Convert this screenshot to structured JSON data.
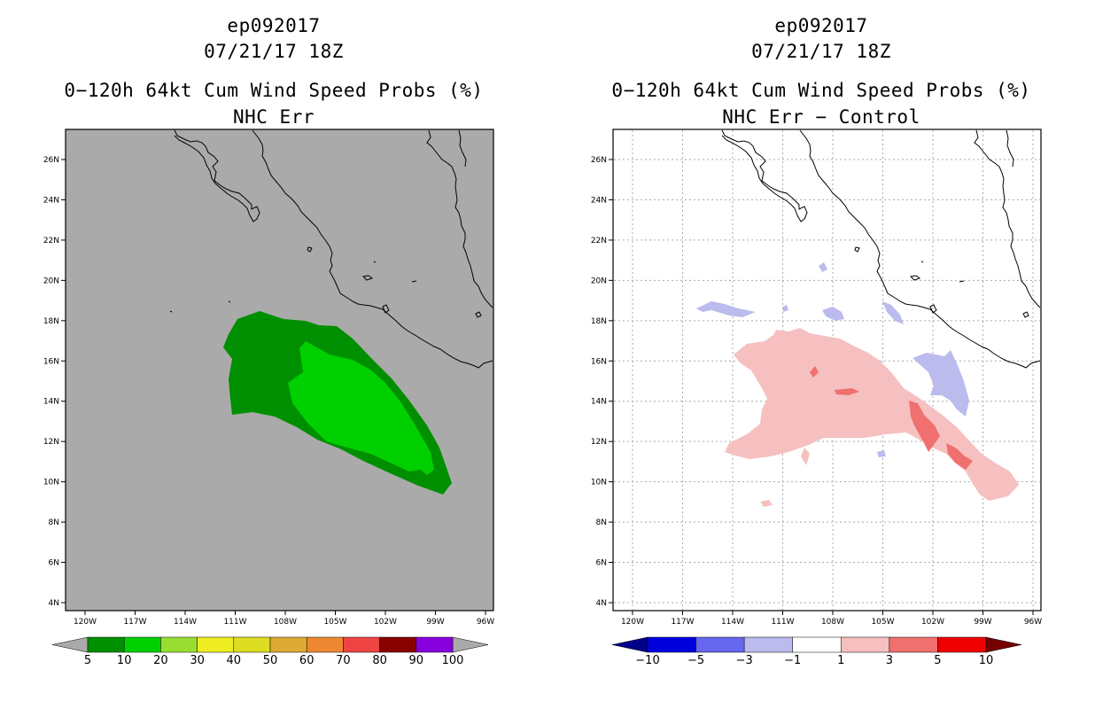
{
  "left": {
    "title_storm": "ep092017",
    "title_time": "07/21/17 18Z",
    "title_product": "0−120h 64kt Cum Wind Speed Probs (%)",
    "title_sub": "NHC Err",
    "colorbar": {
      "labels": [
        "5",
        "10",
        "20",
        "30",
        "40",
        "50",
        "60",
        "70",
        "80",
        "90",
        "100"
      ],
      "colors": [
        "#008f00",
        "#00d000",
        "#99dd33",
        "#eeee22",
        "#dddd22",
        "#ddaa33",
        "#ee8833",
        "#ee4444",
        "#880000",
        "#8800dd"
      ],
      "under_color": "#aaaaaa",
      "over_color": "#aaaaaa"
    },
    "background_color": "#aaaaaa"
  },
  "right": {
    "title_storm": "ep092017",
    "title_time": "07/21/17 18Z",
    "title_product": "0−120h 64kt Cum Wind Speed Probs (%)",
    "title_sub": "NHC Err − Control",
    "colorbar": {
      "labels": [
        "−10",
        "−5",
        "−3",
        "−1",
        "1",
        "3",
        "5",
        "10"
      ],
      "colors": [
        "#0000dd",
        "#6666ee",
        "#bbbbee",
        "#ffffff",
        "#f6c0c0",
        "#f07070",
        "#ee0000"
      ],
      "under_color": "#000088",
      "over_color": "#770000"
    },
    "background_color": "#ffffff"
  },
  "axes": {
    "lon_labels": [
      "120W",
      "117W",
      "114W",
      "111W",
      "108W",
      "105W",
      "102W",
      "99W",
      "96W"
    ],
    "lat_labels": [
      "26N",
      "24N",
      "22N",
      "20N",
      "18N",
      "16N",
      "14N",
      "12N",
      "10N",
      "8N",
      "6N",
      "4N"
    ],
    "lon_values": [
      -120,
      -117,
      -114,
      -111,
      -108,
      -105,
      -102,
      -99,
      -96
    ],
    "lat_values": [
      26,
      24,
      22,
      20,
      18,
      16,
      14,
      12,
      10,
      8,
      6,
      4
    ]
  }
}
